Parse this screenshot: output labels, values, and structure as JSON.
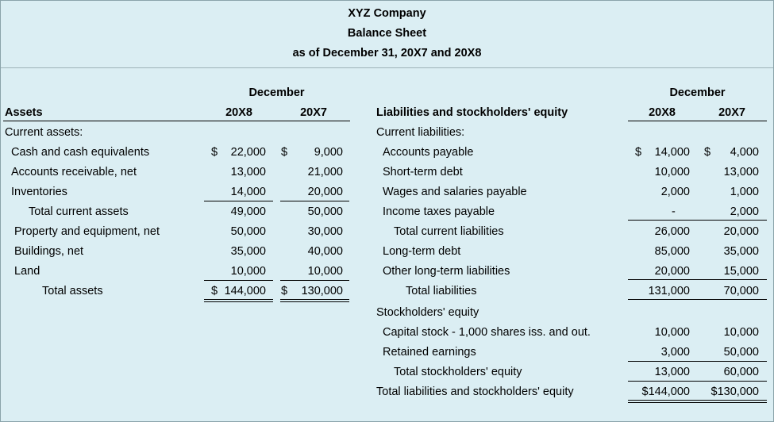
{
  "header": {
    "company": "XYZ Company",
    "statement": "Balance Sheet",
    "period": "as of December 31, 20X7 and 20X8"
  },
  "assets": {
    "month_label": "December",
    "section_label": "Assets",
    "year_a": "20X8",
    "year_b": "20X7",
    "rows": [
      {
        "label": "Current assets:",
        "a": "",
        "b": ""
      },
      {
        "label": "Cash and cash equivalents",
        "a_sym": "$",
        "a": "22,000",
        "b_sym": "$",
        "b": "9,000"
      },
      {
        "label": "Accounts receivable, net",
        "a": "13,000",
        "b": "21,000"
      },
      {
        "label": "Inventories",
        "a": "14,000",
        "b": "20,000"
      },
      {
        "label": "Total current assets",
        "a": "49,000",
        "b": "50,000"
      },
      {
        "label": "Property and equipment, net",
        "a": "50,000",
        "b": "30,000"
      },
      {
        "label": "Buildings, net",
        "a": "35,000",
        "b": "40,000"
      },
      {
        "label": "Land",
        "a": "10,000",
        "b": "10,000"
      },
      {
        "label": "Total assets",
        "a_sym": "$",
        "a": "144,000",
        "b_sym": "$",
        "b": "130,000"
      }
    ]
  },
  "liabilities": {
    "month_label": "December",
    "section_label": "Liabilities and stockholders' equity",
    "year_a": "20X8",
    "year_b": "20X7",
    "rows": [
      {
        "label": "Current liabilities:",
        "a": "",
        "b": ""
      },
      {
        "label": "Accounts payable",
        "a_sym": "$",
        "a": "14,000",
        "b_sym": "$",
        "b": "4,000"
      },
      {
        "label": "Short-term debt",
        "a": "10,000",
        "b": "13,000"
      },
      {
        "label": "Wages and salaries payable",
        "a": "2,000",
        "b": "1,000"
      },
      {
        "label": "Income taxes payable",
        "a": "-",
        "b": "2,000"
      },
      {
        "label": "Total current liabilities",
        "a": "26,000",
        "b": "20,000"
      },
      {
        "label": "Long-term debt",
        "a": "85,000",
        "b": "35,000"
      },
      {
        "label": "Other long-term liabilities",
        "a": "20,000",
        "b": "15,000"
      },
      {
        "label": "Total liabilities",
        "a": "131,000",
        "b": "70,000"
      },
      {
        "label": "Stockholders' equity",
        "a": "",
        "b": ""
      },
      {
        "label": "Capital stock - 1,000 shares iss. and out.",
        "a": "10,000",
        "b": "10,000"
      },
      {
        "label": "Retained earnings",
        "a": "3,000",
        "b": "50,000"
      },
      {
        "label": "Total stockholders' equity",
        "a": "13,000",
        "b": "60,000"
      },
      {
        "label": "Total liabilities and stockholders' equity",
        "a": "$144,000",
        "b": "$130,000"
      }
    ]
  }
}
